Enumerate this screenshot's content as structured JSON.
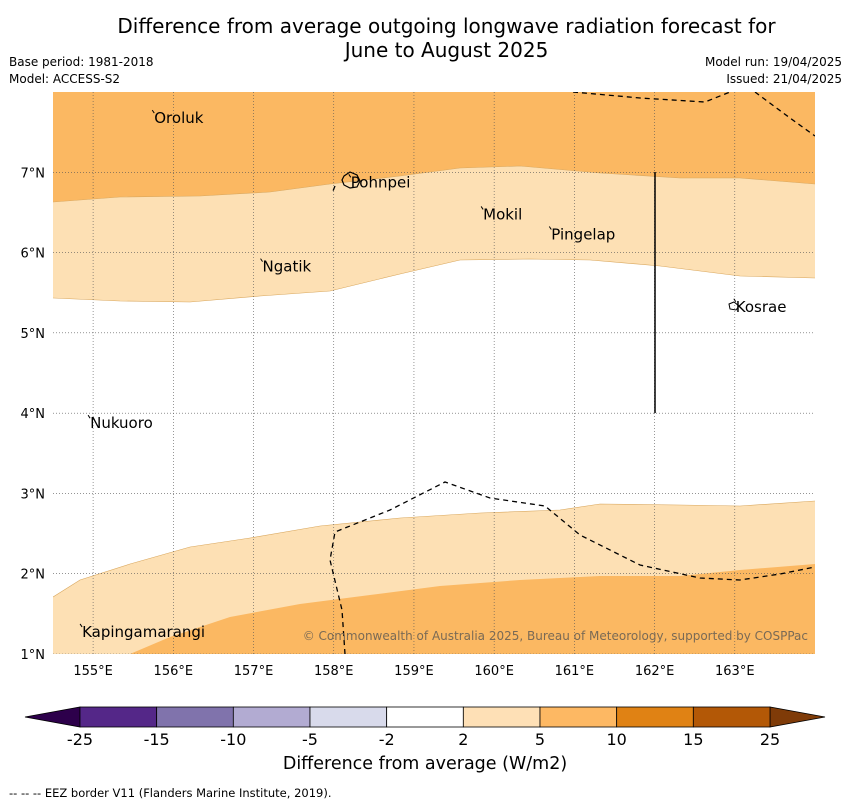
{
  "title_line1": "Difference from average outgoing longwave radiation forecast for",
  "title_line2": "June to August 2025",
  "base_period": "Base period: 1981-2018",
  "model": "Model: ACCESS-S2",
  "model_run": "Model run: 19/04/2025",
  "issued": "Issued: 21/04/2025",
  "copyright": "© Commonwealth of Australia 2025, Bureau of Meteorology, supported by COSPPac",
  "colorbar_label": "Difference from average (W/m2)",
  "footer": "--  --  -- EEZ border V11 (Flanders Marine Institute, 2019).",
  "map": {
    "lon_range": [
      154.5,
      164.0
    ],
    "lat_range": [
      1.0,
      8.0
    ],
    "lon_ticks": [
      {
        "value": 155,
        "label": "155°E"
      },
      {
        "value": 156,
        "label": "156°E"
      },
      {
        "value": 157,
        "label": "157°E"
      },
      {
        "value": 158,
        "label": "158°E"
      },
      {
        "value": 159,
        "label": "159°E"
      },
      {
        "value": 160,
        "label": "160°E"
      },
      {
        "value": 161,
        "label": "161°E"
      },
      {
        "value": 162,
        "label": "162°E"
      },
      {
        "value": 163,
        "label": "163°E"
      }
    ],
    "lat_ticks": [
      {
        "value": 1,
        "label": "1°N"
      },
      {
        "value": 2,
        "label": "2°N"
      },
      {
        "value": 3,
        "label": "3°N"
      },
      {
        "value": 4,
        "label": "4°N"
      },
      {
        "value": 5,
        "label": "5°N"
      },
      {
        "value": 6,
        "label": "6°N"
      },
      {
        "value": 7,
        "label": "7°N"
      }
    ],
    "places": [
      {
        "name": "Oroluk",
        "lon": 155.75,
        "lat": 7.65
      },
      {
        "name": "Pohnpei",
        "lon": 158.2,
        "lat": 6.85
      },
      {
        "name": "Mokil",
        "lon": 159.85,
        "lat": 6.45
      },
      {
        "name": "Pingelap",
        "lon": 160.7,
        "lat": 6.2
      },
      {
        "name": "Ngatik",
        "lon": 157.1,
        "lat": 5.8
      },
      {
        "name": "Kosrae",
        "lon": 163.0,
        "lat": 5.3
      },
      {
        "name": "Nukuoro",
        "lon": 154.95,
        "lat": 3.85
      },
      {
        "name": "Kapingamarangi",
        "lon": 154.85,
        "lat": 1.25
      }
    ],
    "bands": [
      {
        "range": "5 to 10",
        "color": "#fbb862"
      },
      {
        "range": "2 to 5",
        "color": "#fde0b4"
      },
      {
        "range": "-2 to 2",
        "color": "#ffffff"
      }
    ]
  },
  "colorbar": {
    "bins": [
      {
        "color": "#542788"
      },
      {
        "color": "#8073ac"
      },
      {
        "color": "#b2abd2"
      },
      {
        "color": "#d8daeb"
      },
      {
        "color": "#ffffff"
      },
      {
        "color": "#fee0b6"
      },
      {
        "color": "#fdb863"
      },
      {
        "color": "#e08214"
      },
      {
        "color": "#b35806"
      }
    ],
    "low_extend_color": "#2d004b",
    "high_extend_color": "#7f3b08",
    "ticks": [
      "-25",
      "-15",
      "-10",
      "-5",
      "-2",
      "2",
      "5",
      "10",
      "15",
      "25"
    ]
  }
}
